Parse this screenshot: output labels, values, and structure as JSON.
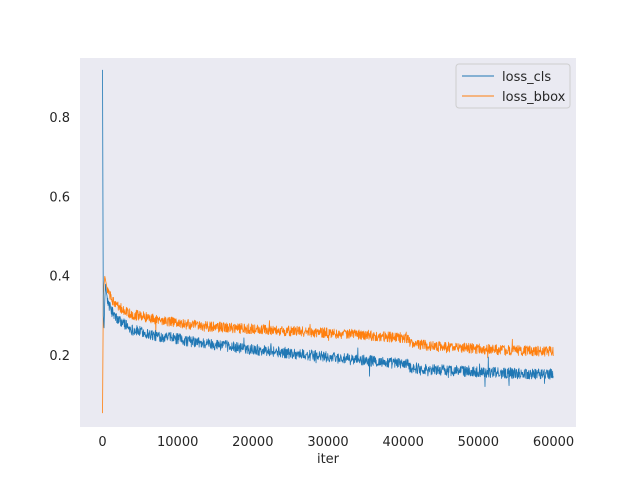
{
  "chart_data": {
    "type": "line",
    "title": "",
    "xlabel": "iter",
    "ylabel": "",
    "xlim": [
      -3000,
      63000
    ],
    "ylim": [
      0.02,
      0.95
    ],
    "grid": false,
    "background": "#eaeaf2",
    "legend_position": "top-right",
    "x_ticks": [
      0,
      10000,
      20000,
      30000,
      40000,
      50000,
      60000
    ],
    "x_tick_labels": [
      "0",
      "10000",
      "20000",
      "30000",
      "40000",
      "50000",
      "60000"
    ],
    "y_ticks": [
      0.2,
      0.4,
      0.6,
      0.8
    ],
    "y_tick_labels": [
      "0.2",
      "0.4",
      "0.6",
      "0.8"
    ],
    "series": [
      {
        "name": "loss_cls",
        "color": "#1f77b4",
        "x": [
          0,
          50,
          100,
          200,
          300,
          400,
          500,
          600,
          800,
          1000,
          1300,
          1600,
          2000,
          2500,
          3000,
          3500,
          4000,
          5000,
          6000,
          7000,
          8000,
          9000,
          10000,
          11000,
          12000,
          13000,
          14000,
          15000,
          16000,
          17000,
          18000,
          19000,
          20000,
          21000,
          22000,
          23000,
          24000,
          25000,
          26000,
          27000,
          28000,
          29000,
          30000,
          31000,
          32000,
          33000,
          34000,
          35000,
          36000,
          37000,
          38000,
          39000,
          40000,
          40500,
          41000,
          42000,
          43000,
          44000,
          45000,
          46000,
          47000,
          48000,
          49000,
          50000,
          51000,
          52000,
          53000,
          54000,
          55000,
          56000,
          57000,
          58000,
          59000,
          60000
        ],
        "y": [
          0.92,
          0.6,
          0.3,
          0.27,
          0.34,
          0.38,
          0.36,
          0.35,
          0.33,
          0.32,
          0.31,
          0.3,
          0.29,
          0.285,
          0.28,
          0.27,
          0.265,
          0.26,
          0.255,
          0.25,
          0.248,
          0.245,
          0.242,
          0.238,
          0.235,
          0.232,
          0.23,
          0.228,
          0.226,
          0.222,
          0.22,
          0.218,
          0.216,
          0.214,
          0.212,
          0.21,
          0.208,
          0.206,
          0.204,
          0.202,
          0.2,
          0.198,
          0.196,
          0.194,
          0.192,
          0.19,
          0.189,
          0.188,
          0.186,
          0.184,
          0.182,
          0.181,
          0.18,
          0.178,
          0.17,
          0.168,
          0.166,
          0.165,
          0.164,
          0.163,
          0.162,
          0.161,
          0.16,
          0.159,
          0.158,
          0.157,
          0.156,
          0.156,
          0.155,
          0.155,
          0.154,
          0.154,
          0.153,
          0.153
        ]
      },
      {
        "name": "loss_bbox",
        "color": "#ff7f0e",
        "x": [
          0,
          50,
          100,
          200,
          300,
          400,
          500,
          600,
          800,
          1000,
          1300,
          1600,
          2000,
          2500,
          3000,
          3500,
          4000,
          5000,
          6000,
          7000,
          8000,
          9000,
          10000,
          11000,
          12000,
          13000,
          14000,
          15000,
          16000,
          17000,
          18000,
          19000,
          20000,
          21000,
          22000,
          23000,
          24000,
          25000,
          26000,
          27000,
          28000,
          29000,
          30000,
          31000,
          32000,
          33000,
          34000,
          35000,
          36000,
          37000,
          38000,
          39000,
          40000,
          40500,
          41000,
          42000,
          43000,
          44000,
          45000,
          46000,
          47000,
          48000,
          49000,
          50000,
          51000,
          52000,
          53000,
          54000,
          55000,
          56000,
          57000,
          58000,
          59000,
          60000
        ],
        "y": [
          0.055,
          0.2,
          0.35,
          0.38,
          0.4,
          0.39,
          0.38,
          0.37,
          0.36,
          0.35,
          0.34,
          0.33,
          0.325,
          0.318,
          0.312,
          0.308,
          0.304,
          0.3,
          0.296,
          0.292,
          0.288,
          0.285,
          0.282,
          0.279,
          0.277,
          0.275,
          0.273,
          0.272,
          0.271,
          0.27,
          0.269,
          0.268,
          0.267,
          0.266,
          0.265,
          0.264,
          0.263,
          0.262,
          0.261,
          0.26,
          0.259,
          0.258,
          0.257,
          0.256,
          0.255,
          0.254,
          0.253,
          0.252,
          0.25,
          0.248,
          0.247,
          0.246,
          0.245,
          0.244,
          0.232,
          0.228,
          0.226,
          0.224,
          0.222,
          0.221,
          0.22,
          0.219,
          0.218,
          0.217,
          0.216,
          0.215,
          0.214,
          0.213,
          0.213,
          0.212,
          0.212,
          0.211,
          0.211,
          0.21
        ]
      }
    ]
  }
}
